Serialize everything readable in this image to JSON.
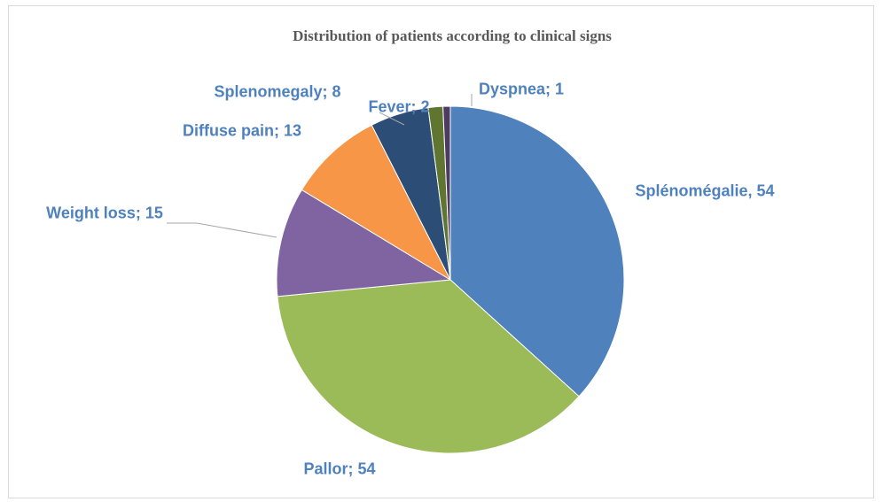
{
  "chart_data": {
    "type": "pie",
    "title": "Distribution of patients according to clinical signs",
    "values": [
      54,
      54,
      15,
      13,
      8,
      2,
      1
    ],
    "value_labels": [
      "Splénomégalie, 54",
      "Pallor; 54",
      "Weight loss; 15",
      "Diffuse pain; 13",
      "Splenomegaly; 8",
      "Fever; 2",
      "Dyspnea; 1"
    ],
    "colors": [
      "#4f81bd",
      "#9bbb59",
      "#8064a2",
      "#f79646",
      "#2c4d75",
      "#5f7530",
      "#4d3b62"
    ]
  }
}
